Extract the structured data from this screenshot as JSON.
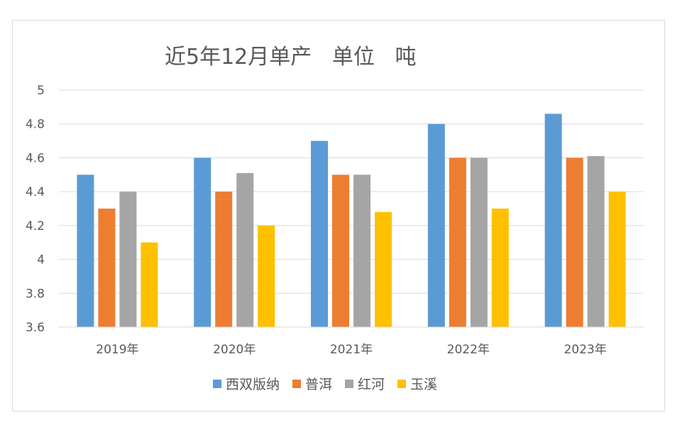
{
  "chart_data": {
    "type": "bar",
    "title": "近5年12月单产   单位   吨",
    "categories": [
      "2019年",
      "2020年",
      "2021年",
      "2022年",
      "2023年"
    ],
    "series": [
      {
        "name": "西双版纳",
        "color": "#5B9BD5",
        "values": [
          4.5,
          4.6,
          4.7,
          4.8,
          4.86
        ]
      },
      {
        "name": "普洱",
        "color": "#ED7D31",
        "values": [
          4.3,
          4.4,
          4.5,
          4.6,
          4.6
        ]
      },
      {
        "name": "红河",
        "color": "#A5A5A5",
        "values": [
          4.4,
          4.51,
          4.5,
          4.6,
          4.61
        ]
      },
      {
        "name": "玉溪",
        "color": "#FFC000",
        "values": [
          4.1,
          4.2,
          4.28,
          4.3,
          4.4
        ]
      }
    ],
    "ylim": [
      3.6,
      5.0
    ],
    "yticks": [
      "3.6",
      "3.8",
      "4",
      "4.2",
      "4.4",
      "4.6",
      "4.8",
      "5"
    ],
    "grid": true,
    "legend_position": "bottom"
  }
}
